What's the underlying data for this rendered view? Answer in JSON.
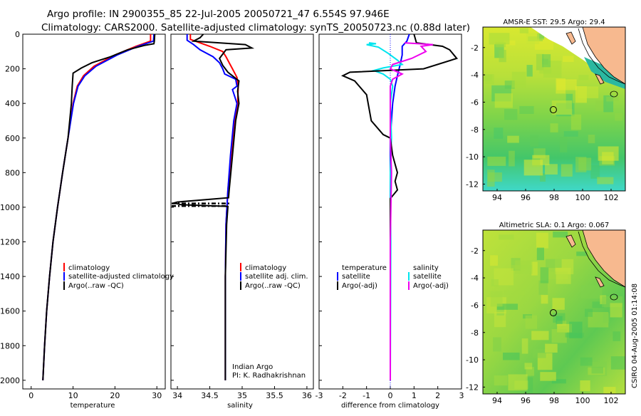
{
  "title": {
    "line1": "Argo profile: IN 2900355_85 22-Jul-2005 20050721_47 6.554S 97.946E",
    "line2": "Climatology: CARS2000. Satellite-adjusted climatology: synTS_20050723.nc (0.88d later)"
  },
  "footer": {
    "credit": "CSIRO 04-Aug-2005 01:14:08"
  },
  "colors": {
    "climatology": "#ff0000",
    "satellite": "#0000ff",
    "argo": "#000000",
    "salinity": "#00e5ee",
    "argo_sal_adj": "#ee00ee"
  },
  "chart_data": [
    {
      "type": "line",
      "name": "temperature",
      "xlabel": "temperature",
      "ylabel": "",
      "xlim": [
        -2,
        32
      ],
      "ylim": [
        2050,
        0
      ],
      "xticks": [
        0,
        10,
        20,
        30
      ],
      "yticks": [
        0,
        200,
        400,
        600,
        800,
        1000,
        1200,
        1400,
        1600,
        1800,
        2000
      ],
      "legend": [
        "climatology",
        "satellite-adjusted climatology",
        "Argo(..raw -QC)"
      ],
      "series": [
        {
          "name": "climatology",
          "color": "#ff0000",
          "points": [
            [
              28.5,
              0
            ],
            [
              28.5,
              40
            ],
            [
              25,
              70
            ],
            [
              20,
              120
            ],
            [
              15,
              185
            ],
            [
              12.5,
              240
            ],
            [
              11,
              300
            ],
            [
              10,
              400
            ],
            [
              8.8,
              600
            ],
            [
              7.5,
              800
            ],
            [
              6.3,
              1000
            ],
            [
              5.2,
              1200
            ],
            [
              4.4,
              1400
            ],
            [
              3.7,
              1600
            ],
            [
              3.2,
              1800
            ],
            [
              2.8,
              2000
            ]
          ]
        },
        {
          "name": "satellite",
          "color": "#0000ff",
          "points": [
            [
              29.3,
              0
            ],
            [
              29.2,
              40
            ],
            [
              25.5,
              70
            ],
            [
              20.5,
              120
            ],
            [
              15.5,
              185
            ],
            [
              12.8,
              240
            ],
            [
              11.2,
              300
            ],
            [
              10.1,
              400
            ],
            [
              8.8,
              600
            ],
            [
              7.5,
              800
            ],
            [
              6.3,
              1000
            ],
            [
              5.2,
              1200
            ],
            [
              4.4,
              1400
            ],
            [
              3.7,
              1600
            ],
            [
              3.2,
              1800
            ],
            [
              2.8,
              2000
            ]
          ]
        },
        {
          "name": "argo",
          "color": "#000000",
          "points": [
            [
              29.5,
              0
            ],
            [
              29.4,
              40
            ],
            [
              29.3,
              55
            ],
            [
              27,
              65
            ],
            [
              23,
              90
            ],
            [
              19,
              130
            ],
            [
              14.5,
              165
            ],
            [
              12,
              195
            ],
            [
              10,
              225
            ],
            [
              9.8,
              300
            ],
            [
              9.6,
              400
            ],
            [
              9,
              550
            ],
            [
              8.8,
              600
            ],
            [
              7.5,
              800
            ],
            [
              6.3,
              1000
            ],
            [
              5.2,
              1200
            ],
            [
              4.4,
              1400
            ],
            [
              3.7,
              1600
            ],
            [
              3.2,
              1800
            ],
            [
              2.8,
              2000
            ]
          ]
        }
      ]
    },
    {
      "type": "line",
      "name": "salinity",
      "xlabel": "salinity",
      "ylabel": "",
      "xlim": [
        33.9,
        36.1
      ],
      "ylim": [
        2050,
        0
      ],
      "xticks": [
        34,
        34.5,
        35,
        35.5,
        36
      ],
      "yticks": [
        0,
        200,
        400,
        600,
        800,
        1000,
        1200,
        1400,
        1600,
        1800,
        2000
      ],
      "legend": [
        "climatology",
        "satellite adj. clim.",
        "Argo(..raw -QC)"
      ],
      "annotation": [
        "Indian Argo",
        "PI: K. Radhakrishnan"
      ],
      "series": [
        {
          "name": "climatology",
          "color": "#ff0000",
          "points": [
            [
              34.2,
              0
            ],
            [
              34.2,
              30
            ],
            [
              34.5,
              70
            ],
            [
              34.7,
              100
            ],
            [
              34.75,
              130
            ],
            [
              34.8,
              165
            ],
            [
              34.85,
              200
            ],
            [
              34.92,
              250
            ],
            [
              34.94,
              300
            ],
            [
              34.93,
              400
            ],
            [
              34.88,
              500
            ],
            [
              34.83,
              700
            ],
            [
              34.78,
              900
            ],
            [
              34.75,
              1100
            ],
            [
              34.74,
              1400
            ],
            [
              34.74,
              2000
            ]
          ]
        },
        {
          "name": "satellite",
          "color": "#0000ff",
          "points": [
            [
              34.15,
              0
            ],
            [
              34.15,
              35
            ],
            [
              34.25,
              60
            ],
            [
              34.35,
              90
            ],
            [
              34.55,
              130
            ],
            [
              34.65,
              165
            ],
            [
              34.7,
              200
            ],
            [
              34.73,
              230
            ],
            [
              34.9,
              260
            ],
            [
              34.92,
              300
            ],
            [
              34.85,
              320
            ],
            [
              34.92,
              400
            ],
            [
              34.87,
              500
            ],
            [
              34.82,
              700
            ],
            [
              34.78,
              900
            ],
            [
              34.75,
              1100
            ],
            [
              34.74,
              1400
            ],
            [
              34.74,
              2000
            ]
          ]
        },
        {
          "name": "argo",
          "color": "#000000",
          "points": [
            [
              34.4,
              0
            ],
            [
              34.35,
              20
            ],
            [
              34.25,
              40
            ],
            [
              35.05,
              60
            ],
            [
              35.15,
              80
            ],
            [
              34.75,
              90
            ],
            [
              34.65,
              140
            ],
            [
              34.7,
              180
            ],
            [
              34.78,
              220
            ],
            [
              34.95,
              270
            ],
            [
              34.93,
              330
            ],
            [
              34.95,
              400
            ],
            [
              34.9,
              500
            ],
            [
              34.85,
              700
            ],
            [
              34.8,
              900
            ],
            [
              34.79,
              945
            ],
            [
              34.0,
              970
            ],
            [
              33.95,
              975
            ],
            [
              34.05,
              985
            ],
            [
              34.78,
              995
            ],
            [
              34.76,
              1100
            ],
            [
              34.74,
              1400
            ],
            [
              34.74,
              2000
            ]
          ]
        }
      ]
    },
    {
      "type": "line",
      "name": "difference",
      "xlabel": "difference from climatology",
      "ylabel": "",
      "xlim": [
        -3,
        3
      ],
      "ylim": [
        2050,
        0
      ],
      "xticks": [
        -3,
        -2,
        -1,
        0,
        1,
        2,
        3
      ],
      "yticks": [
        0,
        200,
        400,
        600,
        800,
        1000,
        1200,
        1400,
        1600,
        1800,
        2000
      ],
      "legend_left": [
        "temperature",
        "satellite",
        "Argo(-adj)"
      ],
      "legend_right": [
        "salinity",
        "satellite",
        "Argo(-adj)"
      ],
      "series": [
        {
          "name": "temperature satellite",
          "color": "#0000ff",
          "points": [
            [
              0.8,
              0
            ],
            [
              0.7,
              40
            ],
            [
              0.5,
              70
            ],
            [
              0.5,
              120
            ],
            [
              0.4,
              185
            ],
            [
              0.3,
              240
            ],
            [
              0.2,
              300
            ],
            [
              0.1,
              400
            ],
            [
              0,
              600
            ],
            [
              0,
              2000
            ]
          ]
        },
        {
          "name": "salinity satellite",
          "color": "#00e5ee",
          "points": [
            [
              -0.9,
              50
            ],
            [
              -0.6,
              55
            ],
            [
              -1.0,
              60
            ],
            [
              -0.5,
              75
            ],
            [
              -0.1,
              110
            ],
            [
              0.3,
              150
            ],
            [
              0.5,
              175
            ],
            [
              -0.3,
              195
            ],
            [
              -0.7,
              210
            ],
            [
              -0.3,
              230
            ],
            [
              0,
              260
            ],
            [
              0.1,
              300
            ],
            [
              0,
              400
            ],
            [
              0.05,
              600
            ],
            [
              0,
              800
            ],
            [
              0.02,
              1200
            ],
            [
              0,
              2000
            ]
          ]
        },
        {
          "name": "temperature argo",
          "color": "#000000",
          "points": [
            [
              1.0,
              0
            ],
            [
              1.1,
              50
            ],
            [
              2.2,
              70
            ],
            [
              2.5,
              90
            ],
            [
              2.8,
              140
            ],
            [
              1.4,
              200
            ],
            [
              -1.7,
              220
            ],
            [
              -2.0,
              240
            ],
            [
              -1.5,
              270
            ],
            [
              -1.0,
              350
            ],
            [
              -0.8,
              500
            ],
            [
              -0.3,
              580
            ],
            [
              0,
              600
            ],
            [
              0.1,
              700
            ],
            [
              0.3,
              800
            ],
            [
              0.2,
              850
            ],
            [
              0.3,
              900
            ],
            [
              0,
              950
            ],
            [
              0,
              2000
            ]
          ]
        },
        {
          "name": "salinity argo",
          "color": "#ee00ee",
          "points": [
            [
              0.6,
              50
            ],
            [
              1.2,
              55
            ],
            [
              1.8,
              60
            ],
            [
              1.3,
              70
            ],
            [
              1.5,
              100
            ],
            [
              0.9,
              140
            ],
            [
              0.1,
              175
            ],
            [
              0,
              200
            ],
            [
              0.5,
              230
            ],
            [
              0.1,
              260
            ],
            [
              0,
              300
            ],
            [
              0,
              600
            ],
            [
              0.05,
              800
            ],
            [
              0,
              1200
            ],
            [
              0,
              2000
            ]
          ]
        }
      ]
    },
    {
      "type": "heatmap",
      "name": "sst map",
      "title": "AMSR-E SST: 29.5 Argo: 29.4",
      "xlim": [
        93,
        103
      ],
      "ylim": [
        -12.5,
        -0.5
      ],
      "xticks": [
        94,
        96,
        98,
        100,
        102
      ],
      "yticks": [
        -2,
        -4,
        -6,
        -8,
        -10,
        -12
      ],
      "argo_position": [
        97.946,
        -6.554
      ]
    },
    {
      "type": "heatmap",
      "name": "sla map",
      "title": "Altimetric SLA: 0.1 Argo: 0.067",
      "xlim": [
        93,
        103
      ],
      "ylim": [
        -12.5,
        -0.5
      ],
      "xticks": [
        94,
        96,
        98,
        100,
        102
      ],
      "yticks": [
        -2,
        -4,
        -6,
        -8,
        -10,
        -12
      ],
      "argo_position": [
        97.946,
        -6.554
      ]
    }
  ]
}
